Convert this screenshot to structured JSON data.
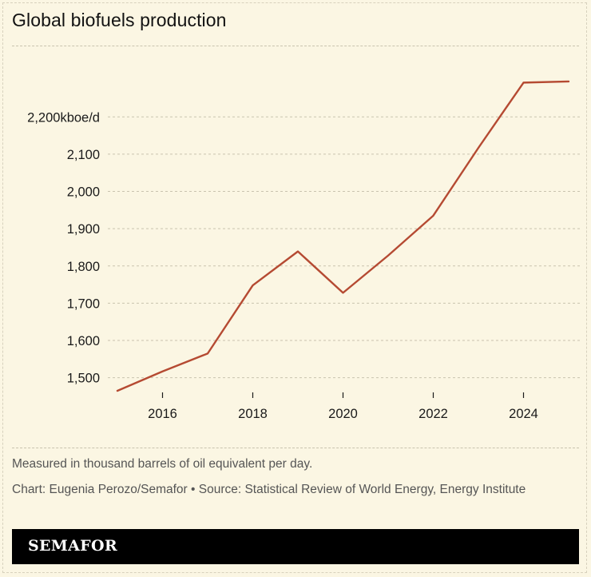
{
  "title": "Global biofuels production",
  "chart_data": {
    "type": "line",
    "title": "Global biofuels production",
    "x": [
      2015,
      2016,
      2017,
      2018,
      2019,
      2020,
      2021,
      2022,
      2023,
      2024,
      2025
    ],
    "series": [
      {
        "values": [
          1465,
          1517,
          1565,
          1748,
          1839,
          1728,
          1828,
          1935,
          2117,
          2292,
          2295
        ]
      }
    ],
    "x_ticks": [
      "2016",
      "2018",
      "2020",
      "2022",
      "2024"
    ],
    "y_ticks": [
      {
        "value": 2200,
        "label": "2,200kboe/d"
      },
      {
        "value": 2100,
        "label": "2,100"
      },
      {
        "value": 2000,
        "label": "2,000"
      },
      {
        "value": 1900,
        "label": "1,900"
      },
      {
        "value": 1800,
        "label": "1,800"
      },
      {
        "value": 1700,
        "label": "1,700"
      },
      {
        "value": 1600,
        "label": "1,600"
      },
      {
        "value": 1500,
        "label": "1,500"
      }
    ],
    "xlim": [
      2015,
      2025
    ],
    "ylim": [
      1465,
      2340
    ],
    "grid": true,
    "line_color": "#b54a32"
  },
  "footnote": "Measured in thousand barrels of oil equivalent per day.",
  "credit": "Chart: Eugenia Perozo/Semafor • Source: Statistical Review of World Energy, Energy Institute",
  "brand": "SEMAFOR"
}
